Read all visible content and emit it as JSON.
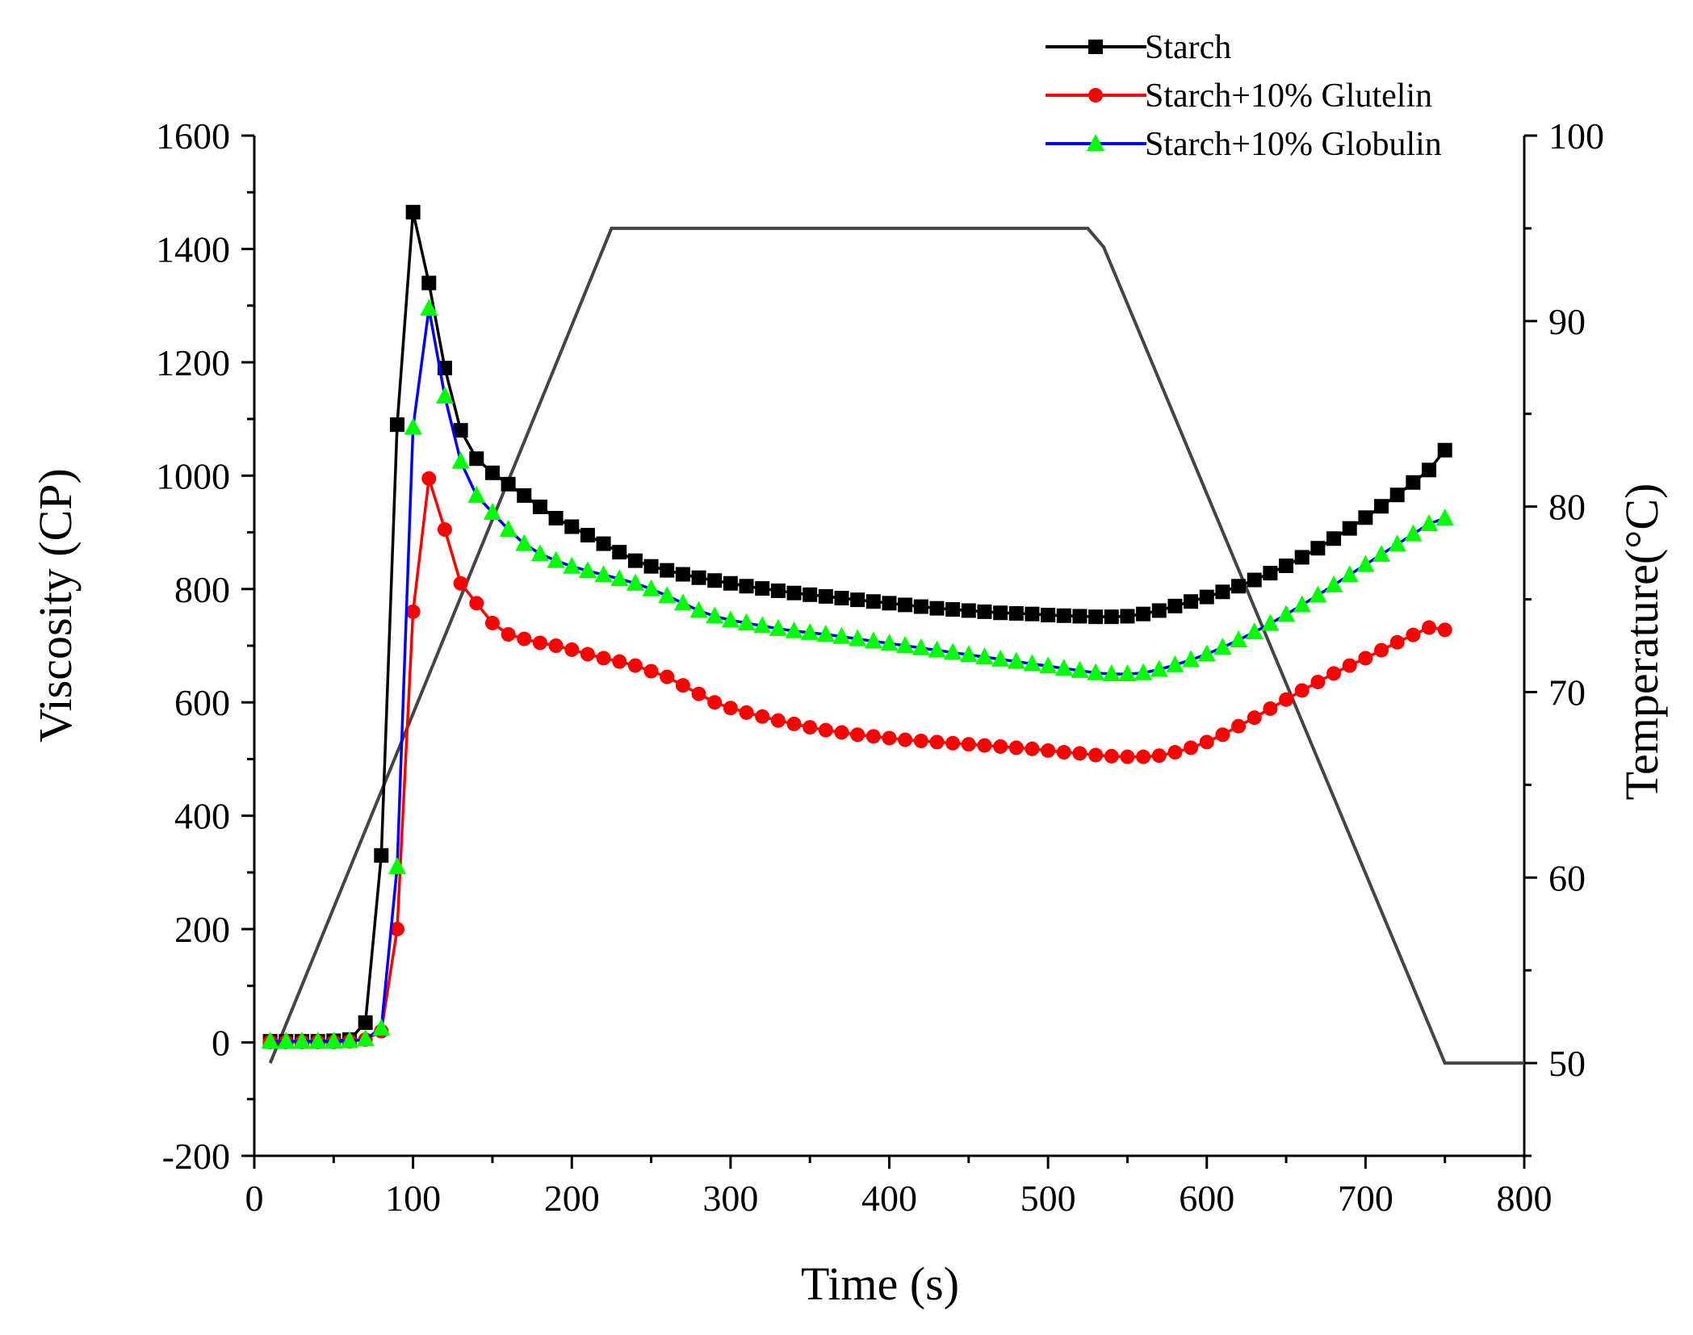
{
  "chart_data": {
    "type": "line",
    "title": "",
    "xlabel": "Time (s)",
    "ylabel": "Viscosity (CP)",
    "y2label": "Temperature(°C)",
    "xlim": [
      0,
      800
    ],
    "ylim": [
      -200,
      1600
    ],
    "y2lim": [
      45,
      100
    ],
    "xticks": [
      0,
      100,
      200,
      300,
      400,
      500,
      600,
      700,
      800
    ],
    "yticks": [
      -200,
      0,
      200,
      400,
      600,
      800,
      1000,
      1200,
      1400,
      1600
    ],
    "y2ticks": [
      50,
      60,
      70,
      80,
      90,
      100
    ],
    "grid": false,
    "legend_position": "top-right",
    "x": [
      10,
      20,
      30,
      40,
      50,
      60,
      70,
      80,
      90,
      100,
      110,
      120,
      130,
      140,
      150,
      160,
      170,
      180,
      190,
      200,
      210,
      220,
      230,
      240,
      250,
      260,
      270,
      280,
      290,
      300,
      310,
      320,
      330,
      340,
      350,
      360,
      370,
      380,
      390,
      400,
      410,
      420,
      430,
      440,
      450,
      460,
      470,
      480,
      490,
      500,
      510,
      520,
      530,
      540,
      550,
      560,
      570,
      580,
      590,
      600,
      610,
      620,
      630,
      640,
      650,
      660,
      670,
      680,
      690,
      700,
      710,
      720,
      730,
      740,
      750
    ],
    "series": [
      {
        "name": "Starch",
        "color": "#000000",
        "marker": "square",
        "values": [
          2,
          2,
          2,
          2,
          3,
          5,
          35,
          330,
          1090,
          1465,
          1340,
          1190,
          1080,
          1030,
          1005,
          985,
          965,
          945,
          925,
          910,
          895,
          880,
          865,
          850,
          840,
          833,
          826,
          820,
          815,
          810,
          805,
          801,
          797,
          793,
          790,
          787,
          784,
          781,
          778,
          775,
          772,
          769,
          766,
          764,
          762,
          760,
          758,
          757,
          756,
          754,
          753,
          752,
          751,
          751,
          752,
          756,
          762,
          770,
          778,
          786,
          795,
          805,
          816,
          828,
          841,
          856,
          872,
          889,
          907,
          926,
          946,
          966,
          988,
          1010,
          1045
        ]
      },
      {
        "name": "Starch+10% Glutelin",
        "color": "#ff0000",
        "marker": "circle",
        "values": [
          1,
          1,
          1,
          1,
          1,
          2,
          5,
          20,
          200,
          760,
          995,
          905,
          810,
          775,
          740,
          720,
          712,
          705,
          700,
          693,
          685,
          678,
          672,
          665,
          655,
          645,
          630,
          615,
          600,
          590,
          582,
          575,
          568,
          562,
          556,
          551,
          547,
          543,
          540,
          537,
          534,
          532,
          530,
          528,
          526,
          524,
          522,
          520,
          518,
          515,
          512,
          510,
          507,
          505,
          504,
          504,
          506,
          512,
          520,
          530,
          543,
          558,
          573,
          589,
          605,
          621,
          636,
          651,
          665,
          678,
          692,
          706,
          719,
          732,
          728
        ]
      },
      {
        "name": "Starch+10% Globulin",
        "color": "#0000ff",
        "markerColor": "#00ff00",
        "marker": "triangle",
        "values": [
          2,
          2,
          2,
          2,
          2,
          3,
          6,
          25,
          310,
          1085,
          1295,
          1140,
          1025,
          965,
          935,
          905,
          880,
          862,
          850,
          840,
          832,
          825,
          818,
          810,
          800,
          788,
          775,
          762,
          752,
          745,
          740,
          735,
          730,
          726,
          723,
          720,
          716,
          712,
          708,
          704,
          700,
          696,
          692,
          688,
          684,
          680,
          676,
          672,
          668,
          664,
          660,
          656,
          652,
          650,
          650,
          652,
          658,
          666,
          675,
          685,
          697,
          710,
          724,
          739,
          755,
          772,
          789,
          807,
          825,
          843,
          861,
          879,
          897,
          915,
          925
        ]
      }
    ],
    "temperature_profile": {
      "name": "Temperature",
      "color": "#444444",
      "time": [
        10,
        225,
        232,
        525,
        535,
        750,
        800
      ],
      "temp": [
        50,
        95,
        95,
        95,
        94,
        50,
        50
      ]
    }
  }
}
